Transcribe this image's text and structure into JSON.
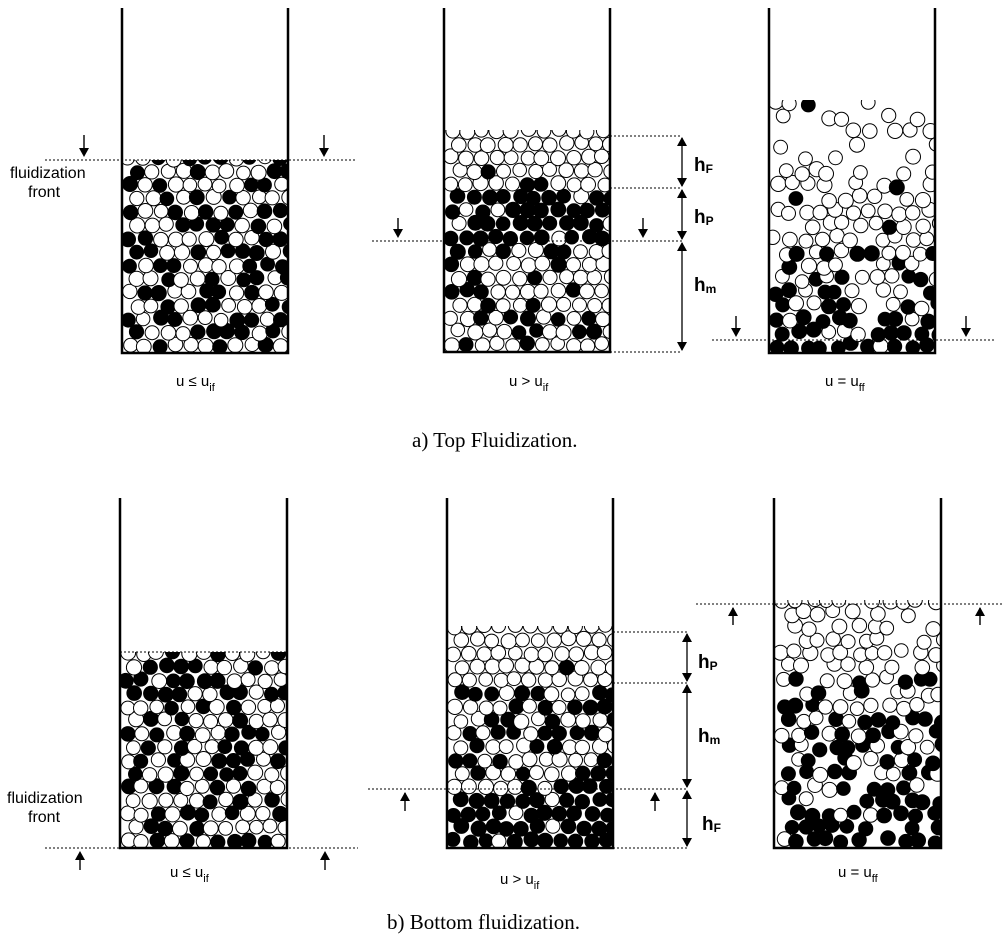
{
  "panels": {
    "top": {
      "caption": "a) Top Fluidization.",
      "front_label_line1": "fluidization",
      "front_label_line2": "front",
      "columns": [
        {
          "cond_base": "u ≤ u",
          "cond_sub": "if"
        },
        {
          "cond_base": "u > u",
          "cond_sub": "if"
        },
        {
          "cond_base": "u = u",
          "cond_sub": "ff"
        }
      ],
      "heights": [
        {
          "base": "h",
          "sub": "F"
        },
        {
          "base": "h",
          "sub": "P"
        },
        {
          "base": "h",
          "sub": "m"
        }
      ]
    },
    "bottom": {
      "caption": "b) Bottom fluidization.",
      "front_label_line1": "fluidization",
      "front_label_line2": "front",
      "columns": [
        {
          "cond_base": "u ≤ u",
          "cond_sub": "if"
        },
        {
          "cond_base": "u > u",
          "cond_sub": "if"
        },
        {
          "cond_base": "u = u",
          "cond_sub": "ff"
        }
      ],
      "heights": [
        {
          "base": "h",
          "sub": "P"
        },
        {
          "base": "h",
          "sub": "m"
        },
        {
          "base": "h",
          "sub": "F"
        }
      ]
    }
  },
  "legend_meaning": {
    "filled_particle_color": "#000000",
    "open_particle_color": "#ffffff"
  }
}
